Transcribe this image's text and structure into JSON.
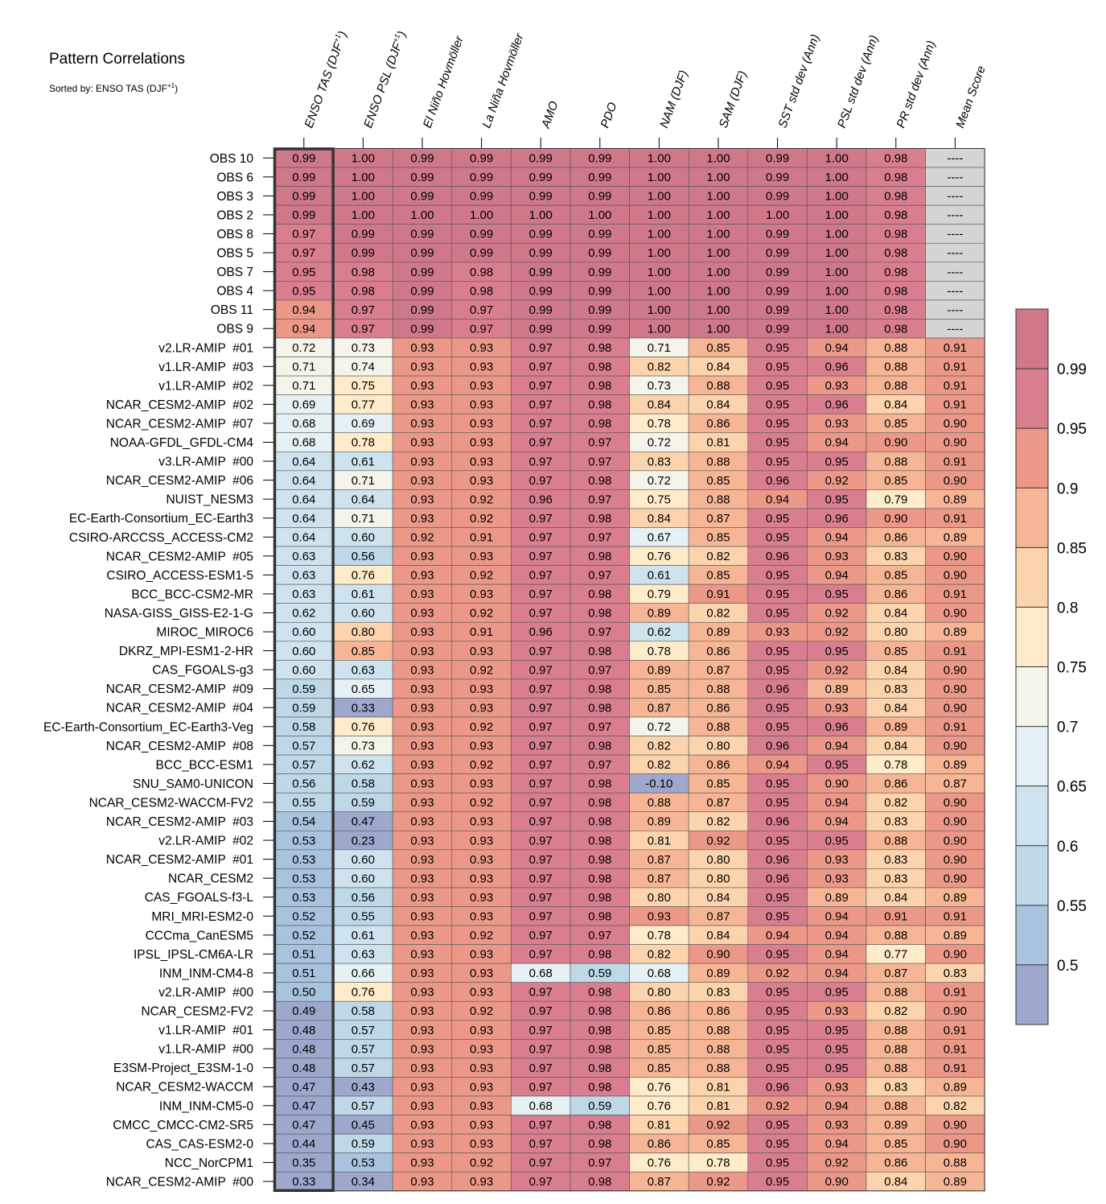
{
  "chart_data": {
    "type": "heatmap",
    "title": "Pattern Correlations",
    "subtitle_prefix": "Sorted by: ENSO TAS (DJF",
    "subtitle_sup": "+1",
    "subtitle_suffix": ")",
    "columns": [
      {
        "label": "ENSO TAS (DJF",
        "sup": "+1",
        "suffix": ")"
      },
      {
        "label": "ENSO PSL (DJF",
        "sup": "+1",
        "suffix": ")"
      },
      {
        "label": "El Niño Hovmöller",
        "sup": "",
        "suffix": ""
      },
      {
        "label": "La Niña Hovmöller",
        "sup": "",
        "suffix": ""
      },
      {
        "label": "AMO",
        "sup": "",
        "suffix": ""
      },
      {
        "label": "PDO",
        "sup": "",
        "suffix": ""
      },
      {
        "label": "NAM (DJF)",
        "sup": "",
        "suffix": ""
      },
      {
        "label": "SAM (DJF)",
        "sup": "",
        "suffix": ""
      },
      {
        "label": "SST std dev (Ann)",
        "sup": "",
        "suffix": ""
      },
      {
        "label": "PSL std dev (Ann)",
        "sup": "",
        "suffix": ""
      },
      {
        "label": "PR std dev (Ann)",
        "sup": "",
        "suffix": ""
      },
      {
        "label": "Mean Score",
        "sup": "",
        "suffix": ""
      }
    ],
    "rows": [
      {
        "name": "OBS 10",
        "values": [
          0.99,
          1.0,
          0.99,
          0.99,
          0.99,
          0.99,
          1.0,
          1.0,
          0.99,
          1.0,
          0.98,
          null
        ]
      },
      {
        "name": "OBS 6",
        "values": [
          0.99,
          1.0,
          0.99,
          0.99,
          0.99,
          0.99,
          1.0,
          1.0,
          0.99,
          1.0,
          0.98,
          null
        ]
      },
      {
        "name": "OBS 3",
        "values": [
          0.99,
          1.0,
          0.99,
          0.99,
          0.99,
          0.99,
          1.0,
          1.0,
          0.99,
          1.0,
          0.98,
          null
        ]
      },
      {
        "name": "OBS 2",
        "values": [
          0.99,
          1.0,
          1.0,
          1.0,
          1.0,
          1.0,
          1.0,
          1.0,
          1.0,
          1.0,
          0.98,
          null
        ]
      },
      {
        "name": "OBS 8",
        "values": [
          0.97,
          0.99,
          0.99,
          0.99,
          0.99,
          0.99,
          1.0,
          1.0,
          0.99,
          1.0,
          0.98,
          null
        ]
      },
      {
        "name": "OBS 5",
        "values": [
          0.97,
          0.99,
          0.99,
          0.99,
          0.99,
          0.99,
          1.0,
          1.0,
          0.99,
          1.0,
          0.98,
          null
        ]
      },
      {
        "name": "OBS 7",
        "values": [
          0.95,
          0.98,
          0.99,
          0.98,
          0.99,
          0.99,
          1.0,
          1.0,
          0.99,
          1.0,
          0.98,
          null
        ]
      },
      {
        "name": "OBS 4",
        "values": [
          0.95,
          0.98,
          0.99,
          0.98,
          0.99,
          0.99,
          1.0,
          1.0,
          0.99,
          1.0,
          0.98,
          null
        ]
      },
      {
        "name": "OBS 11",
        "values": [
          0.94,
          0.97,
          0.99,
          0.97,
          0.99,
          0.99,
          1.0,
          1.0,
          0.99,
          1.0,
          0.98,
          null
        ]
      },
      {
        "name": "OBS 9",
        "values": [
          0.94,
          0.97,
          0.99,
          0.97,
          0.99,
          0.99,
          1.0,
          1.0,
          0.99,
          1.0,
          0.98,
          null
        ]
      },
      {
        "name": "v2.LR-AMIP  #01",
        "values": [
          0.72,
          0.73,
          0.93,
          0.93,
          0.97,
          0.98,
          0.71,
          0.85,
          0.95,
          0.94,
          0.88,
          0.91
        ]
      },
      {
        "name": "v1.LR-AMIP  #03",
        "values": [
          0.71,
          0.74,
          0.93,
          0.93,
          0.97,
          0.98,
          0.82,
          0.84,
          0.95,
          0.96,
          0.88,
          0.91
        ]
      },
      {
        "name": "v1.LR-AMIP  #02",
        "values": [
          0.71,
          0.75,
          0.93,
          0.93,
          0.97,
          0.98,
          0.73,
          0.88,
          0.95,
          0.93,
          0.88,
          0.91
        ]
      },
      {
        "name": "NCAR_CESM2-AMIP  #02",
        "values": [
          0.69,
          0.77,
          0.93,
          0.93,
          0.97,
          0.98,
          0.84,
          0.84,
          0.95,
          0.96,
          0.84,
          0.91
        ]
      },
      {
        "name": "NCAR_CESM2-AMIP  #07",
        "values": [
          0.68,
          0.69,
          0.93,
          0.93,
          0.97,
          0.98,
          0.78,
          0.86,
          0.95,
          0.93,
          0.85,
          0.9
        ]
      },
      {
        "name": "NOAA-GFDL_GFDL-CM4",
        "values": [
          0.68,
          0.78,
          0.93,
          0.93,
          0.97,
          0.97,
          0.72,
          0.81,
          0.95,
          0.94,
          0.9,
          0.9
        ]
      },
      {
        "name": "v3.LR-AMIP  #00",
        "values": [
          0.64,
          0.61,
          0.93,
          0.93,
          0.97,
          0.97,
          0.83,
          0.88,
          0.95,
          0.95,
          0.88,
          0.91
        ]
      },
      {
        "name": "NCAR_CESM2-AMIP  #06",
        "values": [
          0.64,
          0.71,
          0.93,
          0.93,
          0.97,
          0.98,
          0.72,
          0.85,
          0.96,
          0.92,
          0.85,
          0.9
        ]
      },
      {
        "name": "NUIST_NESM3",
        "values": [
          0.64,
          0.64,
          0.93,
          0.92,
          0.96,
          0.97,
          0.75,
          0.88,
          0.94,
          0.95,
          0.79,
          0.89
        ]
      },
      {
        "name": "EC-Earth-Consortium_EC-Earth3",
        "values": [
          0.64,
          0.71,
          0.93,
          0.92,
          0.97,
          0.98,
          0.84,
          0.87,
          0.95,
          0.96,
          0.9,
          0.91
        ]
      },
      {
        "name": "CSIRO-ARCCSS_ACCESS-CM2",
        "values": [
          0.64,
          0.6,
          0.92,
          0.91,
          0.97,
          0.97,
          0.67,
          0.85,
          0.95,
          0.94,
          0.86,
          0.89
        ]
      },
      {
        "name": "NCAR_CESM2-AMIP  #05",
        "values": [
          0.63,
          0.56,
          0.93,
          0.93,
          0.97,
          0.98,
          0.76,
          0.82,
          0.96,
          0.93,
          0.83,
          0.9
        ]
      },
      {
        "name": "CSIRO_ACCESS-ESM1-5",
        "values": [
          0.63,
          0.76,
          0.93,
          0.92,
          0.97,
          0.97,
          0.61,
          0.85,
          0.95,
          0.94,
          0.85,
          0.9
        ]
      },
      {
        "name": "BCC_BCC-CSM2-MR",
        "values": [
          0.63,
          0.61,
          0.93,
          0.93,
          0.97,
          0.98,
          0.79,
          0.91,
          0.95,
          0.95,
          0.86,
          0.91
        ]
      },
      {
        "name": "NASA-GISS_GISS-E2-1-G",
        "values": [
          0.62,
          0.6,
          0.93,
          0.92,
          0.97,
          0.98,
          0.89,
          0.82,
          0.95,
          0.92,
          0.84,
          0.9
        ]
      },
      {
        "name": "MIROC_MIROC6",
        "values": [
          0.6,
          0.8,
          0.93,
          0.91,
          0.96,
          0.97,
          0.62,
          0.89,
          0.93,
          0.92,
          0.8,
          0.89
        ]
      },
      {
        "name": "DKRZ_MPI-ESM1-2-HR",
        "values": [
          0.6,
          0.85,
          0.93,
          0.93,
          0.97,
          0.98,
          0.78,
          0.86,
          0.95,
          0.95,
          0.85,
          0.91
        ]
      },
      {
        "name": "CAS_FGOALS-g3",
        "values": [
          0.6,
          0.63,
          0.93,
          0.92,
          0.97,
          0.97,
          0.89,
          0.87,
          0.95,
          0.92,
          0.84,
          0.9
        ]
      },
      {
        "name": "NCAR_CESM2-AMIP  #09",
        "values": [
          0.59,
          0.65,
          0.93,
          0.93,
          0.97,
          0.98,
          0.85,
          0.88,
          0.96,
          0.89,
          0.83,
          0.9
        ]
      },
      {
        "name": "NCAR_CESM2-AMIP  #04",
        "values": [
          0.59,
          0.33,
          0.93,
          0.93,
          0.97,
          0.98,
          0.87,
          0.86,
          0.95,
          0.93,
          0.84,
          0.9
        ]
      },
      {
        "name": "EC-Earth-Consortium_EC-Earth3-Veg",
        "values": [
          0.58,
          0.76,
          0.93,
          0.92,
          0.97,
          0.97,
          0.72,
          0.88,
          0.95,
          0.96,
          0.89,
          0.91
        ]
      },
      {
        "name": "NCAR_CESM2-AMIP  #08",
        "values": [
          0.57,
          0.73,
          0.93,
          0.93,
          0.97,
          0.98,
          0.82,
          0.8,
          0.96,
          0.94,
          0.84,
          0.9
        ]
      },
      {
        "name": "BCC_BCC-ESM1",
        "values": [
          0.57,
          0.62,
          0.93,
          0.92,
          0.97,
          0.97,
          0.82,
          0.86,
          0.94,
          0.95,
          0.78,
          0.89
        ]
      },
      {
        "name": "SNU_SAM0-UNICON",
        "values": [
          0.56,
          0.58,
          0.93,
          0.93,
          0.97,
          0.98,
          -0.1,
          0.85,
          0.95,
          0.9,
          0.86,
          0.87
        ]
      },
      {
        "name": "NCAR_CESM2-WACCM-FV2",
        "values": [
          0.55,
          0.59,
          0.93,
          0.92,
          0.97,
          0.98,
          0.88,
          0.87,
          0.95,
          0.94,
          0.82,
          0.9
        ]
      },
      {
        "name": "NCAR_CESM2-AMIP  #03",
        "values": [
          0.54,
          0.47,
          0.93,
          0.93,
          0.97,
          0.98,
          0.89,
          0.82,
          0.96,
          0.94,
          0.83,
          0.9
        ]
      },
      {
        "name": "v2.LR-AMIP  #02",
        "values": [
          0.53,
          0.23,
          0.93,
          0.93,
          0.97,
          0.98,
          0.81,
          0.92,
          0.95,
          0.95,
          0.88,
          0.9
        ]
      },
      {
        "name": "NCAR_CESM2-AMIP  #01",
        "values": [
          0.53,
          0.6,
          0.93,
          0.93,
          0.97,
          0.98,
          0.87,
          0.8,
          0.96,
          0.93,
          0.83,
          0.9
        ]
      },
      {
        "name": "NCAR_CESM2",
        "values": [
          0.53,
          0.6,
          0.93,
          0.93,
          0.97,
          0.98,
          0.87,
          0.8,
          0.96,
          0.93,
          0.83,
          0.9
        ]
      },
      {
        "name": "CAS_FGOALS-f3-L",
        "values": [
          0.53,
          0.56,
          0.93,
          0.93,
          0.97,
          0.98,
          0.8,
          0.84,
          0.95,
          0.89,
          0.84,
          0.89
        ]
      },
      {
        "name": "MRI_MRI-ESM2-0",
        "values": [
          0.52,
          0.55,
          0.93,
          0.93,
          0.97,
          0.98,
          0.93,
          0.87,
          0.95,
          0.94,
          0.91,
          0.91
        ]
      },
      {
        "name": "CCCma_CanESM5",
        "values": [
          0.52,
          0.61,
          0.93,
          0.92,
          0.97,
          0.97,
          0.78,
          0.84,
          0.94,
          0.94,
          0.88,
          0.89
        ]
      },
      {
        "name": "IPSL_IPSL-CM6A-LR",
        "values": [
          0.51,
          0.63,
          0.93,
          0.93,
          0.97,
          0.98,
          0.82,
          0.9,
          0.95,
          0.94,
          0.77,
          0.9
        ]
      },
      {
        "name": "INM_INM-CM4-8",
        "values": [
          0.51,
          0.66,
          0.93,
          0.93,
          0.68,
          0.59,
          0.68,
          0.89,
          0.92,
          0.94,
          0.87,
          0.83
        ]
      },
      {
        "name": "v2.LR-AMIP  #00",
        "values": [
          0.5,
          0.76,
          0.93,
          0.93,
          0.97,
          0.98,
          0.8,
          0.83,
          0.95,
          0.95,
          0.88,
          0.91
        ]
      },
      {
        "name": "NCAR_CESM2-FV2",
        "values": [
          0.49,
          0.58,
          0.93,
          0.92,
          0.97,
          0.98,
          0.86,
          0.86,
          0.95,
          0.93,
          0.82,
          0.9
        ]
      },
      {
        "name": "v1.LR-AMIP  #01",
        "values": [
          0.48,
          0.57,
          0.93,
          0.93,
          0.97,
          0.98,
          0.85,
          0.88,
          0.95,
          0.95,
          0.88,
          0.91
        ]
      },
      {
        "name": "v1.LR-AMIP  #00",
        "values": [
          0.48,
          0.57,
          0.93,
          0.93,
          0.97,
          0.98,
          0.85,
          0.88,
          0.95,
          0.95,
          0.88,
          0.91
        ]
      },
      {
        "name": "E3SM-Project_E3SM-1-0",
        "values": [
          0.48,
          0.57,
          0.93,
          0.93,
          0.97,
          0.98,
          0.85,
          0.88,
          0.95,
          0.95,
          0.88,
          0.91
        ]
      },
      {
        "name": "NCAR_CESM2-WACCM",
        "values": [
          0.47,
          0.43,
          0.93,
          0.93,
          0.97,
          0.98,
          0.76,
          0.81,
          0.96,
          0.93,
          0.83,
          0.89
        ]
      },
      {
        "name": "INM_INM-CM5-0",
        "values": [
          0.47,
          0.57,
          0.93,
          0.93,
          0.68,
          0.59,
          0.76,
          0.81,
          0.92,
          0.94,
          0.88,
          0.82
        ]
      },
      {
        "name": "CMCC_CMCC-CM2-SR5",
        "values": [
          0.47,
          0.45,
          0.93,
          0.93,
          0.97,
          0.98,
          0.81,
          0.92,
          0.95,
          0.93,
          0.89,
          0.9
        ]
      },
      {
        "name": "CAS_CAS-ESM2-0",
        "values": [
          0.44,
          0.59,
          0.93,
          0.93,
          0.97,
          0.98,
          0.86,
          0.85,
          0.95,
          0.94,
          0.85,
          0.9
        ]
      },
      {
        "name": "NCC_NorCPM1",
        "values": [
          0.35,
          0.53,
          0.93,
          0.92,
          0.97,
          0.97,
          0.76,
          0.78,
          0.95,
          0.92,
          0.86,
          0.88
        ]
      },
      {
        "name": "NCAR_CESM2-AMIP  #00",
        "values": [
          0.33,
          0.34,
          0.93,
          0.93,
          0.97,
          0.98,
          0.87,
          0.92,
          0.95,
          0.9,
          0.84,
          0.89
        ]
      }
    ],
    "missing_text": "----",
    "highlighted_column_index": 0,
    "colorbar": {
      "levels": [
        0.5,
        0.55,
        0.6,
        0.65,
        0.7,
        0.75,
        0.8,
        0.85,
        0.9,
        0.95,
        0.99
      ],
      "tick_labels": [
        "0.5",
        "0.55",
        "0.6",
        "0.65",
        "0.7",
        "0.75",
        "0.8",
        "0.85",
        "0.9",
        "0.95",
        "0.99"
      ],
      "colors": [
        "#9ea8cc",
        "#a7c3de",
        "#bed8e8",
        "#cee3ee",
        "#e5f1f4",
        "#f5f4ea",
        "#fdebc9",
        "#fbd4ae",
        "#f6b696",
        "#eb9888",
        "#d97e8e",
        "#cf7889"
      ],
      "missing_color": "#d4d4d4"
    }
  }
}
